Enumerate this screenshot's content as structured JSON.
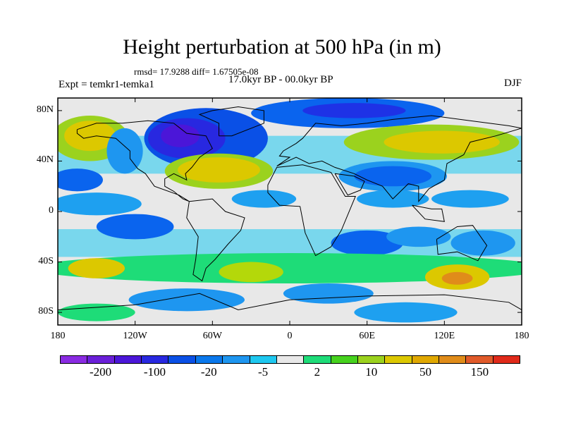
{
  "title": "Height perturbation at 500 hPa (in m)",
  "stats": "rmsd= 17.9288 diff= 1.67505e-08",
  "experiment": "Expt = temkr1-temka1",
  "period": "17.0kyr BP - 00.0kyr BP",
  "season": "DJF",
  "map": {
    "background": "#e8e8e8",
    "lat_ticks": [
      {
        "label": "80N",
        "lat": 80
      },
      {
        "label": "40N",
        "lat": 40
      },
      {
        "label": "0",
        "lat": 0
      },
      {
        "label": "40S",
        "lat": -40
      },
      {
        "label": "80S",
        "lat": -80
      }
    ],
    "lon_ticks": [
      {
        "label": "180",
        "lon": -180
      },
      {
        "label": "120W",
        "lon": -120
      },
      {
        "label": "60W",
        "lon": -60
      },
      {
        "label": "0",
        "lon": 0
      },
      {
        "label": "60E",
        "lon": 60
      },
      {
        "label": "120E",
        "lon": 120
      },
      {
        "label": "180",
        "lon": 180
      }
    ],
    "fields": [
      {
        "name": "n-america-low-outer",
        "lon": -65,
        "lat": 58,
        "rlon": 48,
        "rlat": 24,
        "color": "#0a50e6"
      },
      {
        "name": "n-america-low-core",
        "lon": -80,
        "lat": 58,
        "rlon": 30,
        "rlat": 16,
        "color": "#2828e0"
      },
      {
        "name": "n-america-low-inner",
        "lon": -85,
        "lat": 60,
        "rlon": 15,
        "rlat": 9,
        "color": "#4b16d8"
      },
      {
        "name": "atlantic-high-outer",
        "lon": -55,
        "lat": 32,
        "rlon": 42,
        "rlat": 14,
        "color": "#9bd21e"
      },
      {
        "name": "atlantic-high-core",
        "lon": -55,
        "lat": 33,
        "rlon": 32,
        "rlat": 10,
        "color": "#dcc800"
      },
      {
        "name": "eurasia-arctic-low",
        "lon": 45,
        "lat": 78,
        "rlon": 75,
        "rlat": 12,
        "color": "#0a64ee"
      },
      {
        "name": "eurasia-arctic-low-core",
        "lon": 50,
        "lat": 80,
        "rlon": 40,
        "rlat": 6,
        "color": "#1e32e6"
      },
      {
        "name": "asia-high-outer",
        "lon": 110,
        "lat": 55,
        "rlon": 68,
        "rlat": 14,
        "color": "#9bd21e"
      },
      {
        "name": "asia-high-core",
        "lon": 118,
        "lat": 55,
        "rlon": 45,
        "rlat": 9,
        "color": "#dcc800"
      },
      {
        "name": "pacific-high-west",
        "lon": -155,
        "lat": 58,
        "rlon": 30,
        "rlat": 18,
        "color": "#9bd21e"
      },
      {
        "name": "pacific-high-west-core",
        "lon": -155,
        "lat": 60,
        "rlon": 20,
        "rlat": 12,
        "color": "#dcc800"
      },
      {
        "name": "nw-america-blue",
        "lon": -128,
        "lat": 48,
        "rlon": 14,
        "rlat": 18,
        "color": "#1e96f0"
      },
      {
        "name": "asia-low",
        "lon": 80,
        "lat": 28,
        "rlon": 42,
        "rlat": 12,
        "color": "#1e96f0"
      },
      {
        "name": "asia-low-core",
        "lon": 80,
        "lat": 28,
        "rlon": 30,
        "rlat": 8,
        "color": "#0a64ee"
      },
      {
        "name": "pacific-east-low",
        "lon": -165,
        "lat": 25,
        "rlon": 20,
        "rlat": 9,
        "color": "#0a64ee"
      },
      {
        "name": "tropics-pacific-east",
        "lon": -150,
        "lat": 6,
        "rlon": 35,
        "rlat": 9,
        "color": "#1ea0f0"
      },
      {
        "name": "tropics-atlantic",
        "lon": -20,
        "lat": 10,
        "rlon": 25,
        "rlat": 7,
        "color": "#1ea0f0"
      },
      {
        "name": "tropics-indian",
        "lon": 80,
        "lat": 10,
        "rlon": 28,
        "rlat": 7,
        "color": "#1ea0f0"
      },
      {
        "name": "tropics-west-pacific",
        "lon": 140,
        "lat": 10,
        "rlon": 30,
        "rlat": 7,
        "color": "#1ea0f0"
      },
      {
        "name": "s-pacific-blue",
        "lon": -120,
        "lat": -12,
        "rlon": 30,
        "rlat": 10,
        "color": "#0a64ee"
      },
      {
        "name": "s-atlantic-blue",
        "lon": 60,
        "lat": -25,
        "rlon": 28,
        "rlat": 10,
        "color": "#0a64ee"
      },
      {
        "name": "s-indian-blue",
        "lon": 100,
        "lat": -20,
        "rlon": 25,
        "rlat": 8,
        "color": "#1e96f0"
      },
      {
        "name": "s-west-pacific-blue",
        "lon": 150,
        "lat": -25,
        "rlon": 25,
        "rlat": 10,
        "color": "#1e96f0"
      },
      {
        "name": "southern-belt-green",
        "lon": 0,
        "lat": -45,
        "rlon": 200,
        "rlat": 12,
        "color": "#1edc78"
      },
      {
        "name": "southern-high-1",
        "lon": -150,
        "lat": -45,
        "rlon": 22,
        "rlat": 8,
        "color": "#dcc800"
      },
      {
        "name": "southern-high-2",
        "lon": -30,
        "lat": -48,
        "rlon": 25,
        "rlat": 8,
        "color": "#b4d80a"
      },
      {
        "name": "southern-high-3",
        "lon": 130,
        "lat": -52,
        "rlon": 25,
        "rlat": 10,
        "color": "#dcc800"
      },
      {
        "name": "southern-high-3-core",
        "lon": 130,
        "lat": -53,
        "rlon": 12,
        "rlat": 5,
        "color": "#e08c1a"
      },
      {
        "name": "southern-ocean-low",
        "lon": -80,
        "lat": -70,
        "rlon": 45,
        "rlat": 9,
        "color": "#1e96f0"
      },
      {
        "name": "southern-ocean-low-2",
        "lon": 30,
        "lat": -65,
        "rlon": 35,
        "rlat": 8,
        "color": "#1e96f0"
      },
      {
        "name": "antarctic-green",
        "lon": -150,
        "lat": -80,
        "rlon": 30,
        "rlat": 7,
        "color": "#1edc78"
      },
      {
        "name": "antarctic-blue",
        "lon": 90,
        "lat": -80,
        "rlon": 40,
        "rlat": 8,
        "color": "#1ea0f0"
      }
    ]
  },
  "colorbar": {
    "colors": [
      "#8a2be2",
      "#6a1fd8",
      "#4b16d8",
      "#2828e0",
      "#0a50e6",
      "#0a78ec",
      "#1e96f0",
      "#1ec8f0",
      "#e8e8e8",
      "#1edc78",
      "#46d21e",
      "#9bd21e",
      "#dcc800",
      "#e0a800",
      "#e08c1a",
      "#e05a2a",
      "#e02a1a"
    ],
    "labels": [
      {
        "text": "-200",
        "index": 1
      },
      {
        "text": "-100",
        "index": 3
      },
      {
        "text": "-20",
        "index": 5
      },
      {
        "text": "-5",
        "index": 7
      },
      {
        "text": "2",
        "index": 9
      },
      {
        "text": "10",
        "index": 11
      },
      {
        "text": "50",
        "index": 13
      },
      {
        "text": "150",
        "index": 15
      }
    ]
  }
}
